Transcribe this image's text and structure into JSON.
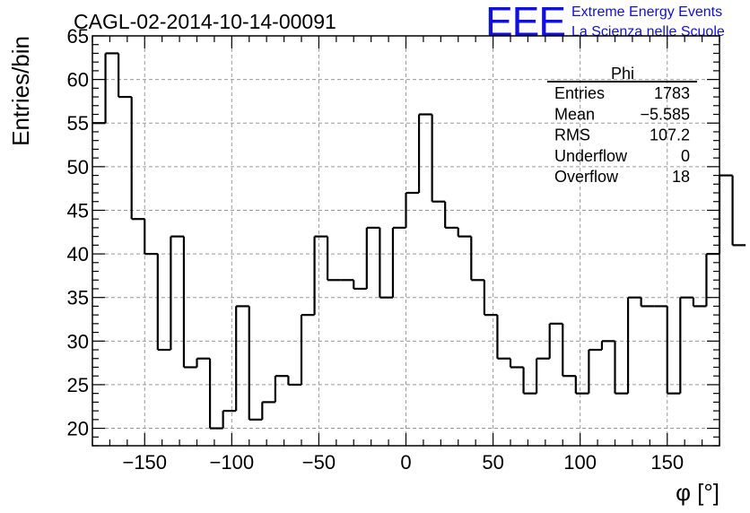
{
  "title": "CAGL-02-2014-10-14-00091",
  "logo": {
    "mark": "EEE",
    "line1": "Extreme Energy Events",
    "line2": "La Scienza nelle Scuole",
    "color": "#1010e0"
  },
  "stats": {
    "name": "Phi",
    "rows": [
      {
        "label": "Entries",
        "value": "1783"
      },
      {
        "label": "Mean",
        "value": "−5.585"
      },
      {
        "label": "RMS",
        "value": "107.2"
      },
      {
        "label": "Underflow",
        "value": "0"
      },
      {
        "label": "Overflow",
        "value": "18"
      }
    ]
  },
  "chart_data": {
    "type": "histogram",
    "title": "CAGL-02-2014-10-14-00091",
    "xlabel": "φ [°]",
    "ylabel": "Entries/bin",
    "xlim": [
      -180,
      180
    ],
    "ylim": [
      18,
      65
    ],
    "xticks": [
      -150,
      -100,
      -50,
      0,
      50,
      100,
      150
    ],
    "xtick_labels": [
      "−150",
      "−100",
      "−50",
      "0",
      "50",
      "100",
      "150"
    ],
    "yticks": [
      20,
      25,
      30,
      35,
      40,
      45,
      50,
      55,
      60,
      65
    ],
    "grid": true,
    "bin_width": 7.5,
    "bin_edges_start": -180,
    "values": [
      55,
      63,
      58,
      44,
      40,
      29,
      42,
      27,
      28,
      20,
      22,
      34,
      21,
      23,
      26,
      25,
      33,
      42,
      37,
      37,
      36,
      43,
      35,
      43,
      47,
      56,
      46,
      43,
      42,
      37,
      33,
      28,
      27,
      24,
      28,
      32,
      26,
      24,
      29,
      30,
      24,
      35,
      34,
      34,
      24,
      35,
      34,
      40,
      49,
      41
    ],
    "line_color": "#000000"
  }
}
